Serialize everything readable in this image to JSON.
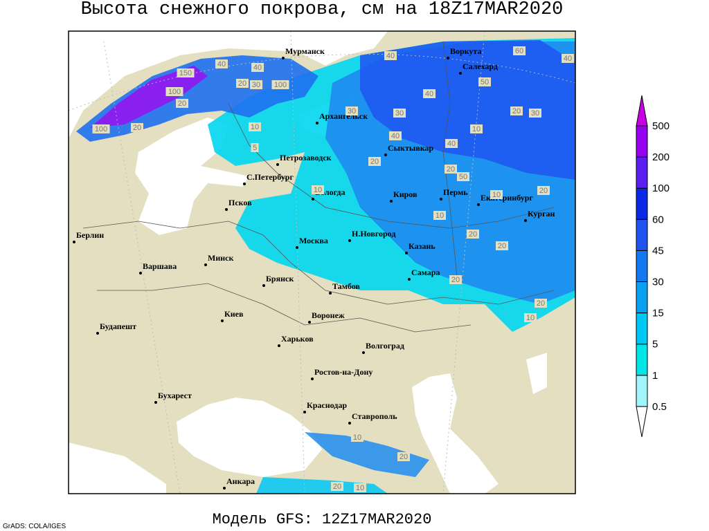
{
  "header": {
    "title": "Высота снежного покрова, см на 18Z17MAR2020"
  },
  "footer": {
    "model": "Модель GFS: 12Z17MAR2020",
    "credit": "GrADS: COLA/IGES"
  },
  "cities": [
    "Мурманск",
    "Воркута",
    "Салехард",
    "Архангельск",
    "Сыктывкар",
    "Петрозаводск",
    "С.Петербург",
    "Вологда",
    "Киров",
    "Пермь",
    "Екатеринбург",
    "Курган",
    "Псков",
    "Берлин",
    "Н.Новгород",
    "Москва",
    "Казань",
    "Минск",
    "Варшава",
    "Самара",
    "Брянск",
    "Тамбов",
    "Киев",
    "Воронеж",
    "Будапешт",
    "Харьков",
    "Волгоград",
    "Ростов-на-Дону",
    "Бухарест",
    "Краснодар",
    "Ставрополь",
    "Анкара"
  ],
  "contour_labels": [
    40,
    40,
    20,
    30,
    100,
    150,
    100,
    100,
    20,
    20,
    10,
    5,
    30,
    30,
    40,
    50,
    20,
    30,
    10,
    40,
    40,
    20,
    20,
    50,
    10,
    10,
    20,
    10,
    20,
    20,
    20,
    20,
    10,
    60,
    40,
    40,
    10,
    20,
    20,
    10
  ],
  "legend": {
    "levels": [
      0.5,
      1,
      5,
      15,
      30,
      45,
      60,
      100,
      200,
      500
    ],
    "colors": [
      "#ffffff",
      "#a0f4fa",
      "#00e6e6",
      "#00c8f5",
      "#0aa0f0",
      "#1478f0",
      "#1e55f0",
      "#0a28e6",
      "#5a1ef0",
      "#9600f0",
      "#c800e6"
    ]
  }
}
